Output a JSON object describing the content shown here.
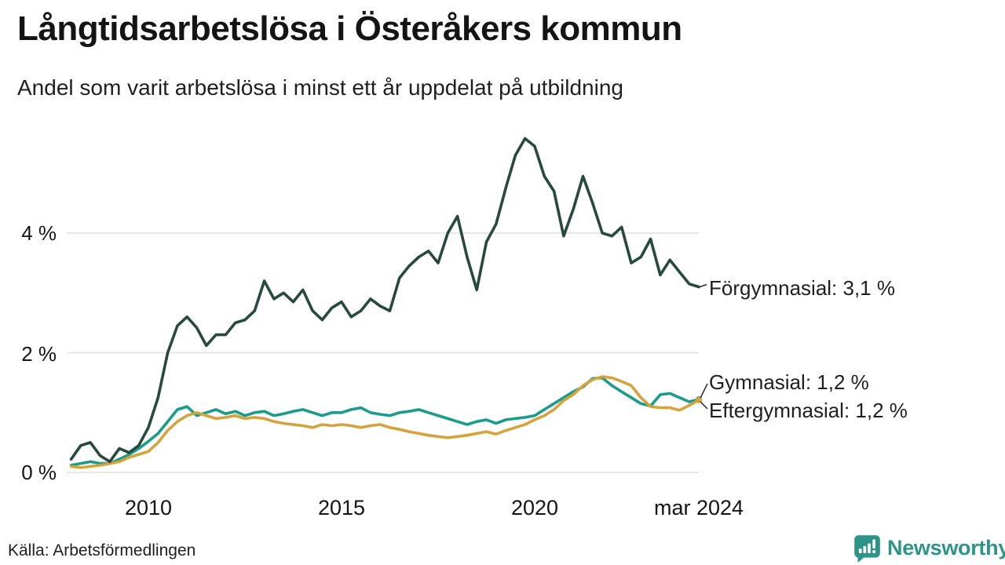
{
  "header": {
    "title": "Långtidsarbetslösa i Österåkers kommun",
    "subtitle": "Andel som varit arbetslösa i minst ett år uppdelat på utbildning"
  },
  "footer": {
    "source": "Källa: Arbetsförmedlingen",
    "brand": "Newsworthy"
  },
  "colors": {
    "forgymnasial": "#27493f",
    "gymnasial": "#1b9c8b",
    "eftergymnasial": "#d4a33d",
    "grid": "#e8e8e8",
    "connector": "#333333",
    "brand_teal": "#2e9488",
    "text": "#141414"
  },
  "chart_data": {
    "type": "line",
    "title": "Långtidsarbetslösa i Österåkers kommun",
    "subtitle": "Andel som varit arbetslösa i minst ett år uppdelat på utbildning",
    "unit": "%",
    "x_start": 2008.0,
    "x_step": 0.25,
    "x_end_label": "mar 2024",
    "grid": true,
    "legend_position": "right-end-annotations",
    "x_axis": {
      "ticks": [
        {
          "label": "2010",
          "year": 2010
        },
        {
          "label": "2015",
          "year": 2015
        },
        {
          "label": "2020",
          "year": 2020
        },
        {
          "label": "mar 2024",
          "year": 2024.17
        }
      ],
      "range": [
        2008.0,
        2024.25
      ]
    },
    "y_axis": {
      "ticks": [
        {
          "label": "0 %",
          "value": 0
        },
        {
          "label": "2 %",
          "value": 2
        },
        {
          "label": "4 %",
          "value": 4
        }
      ],
      "range": [
        0,
        5.8
      ]
    },
    "series": [
      {
        "id": "forgymnasial",
        "name": "Förgymnasial",
        "end_label": "Förgymnasial: 3,1 %",
        "end_value": "3,1 %",
        "color": "#27493f",
        "end_dot": false,
        "values": [
          0.22,
          0.45,
          0.5,
          0.28,
          0.18,
          0.4,
          0.33,
          0.45,
          0.75,
          1.25,
          2.0,
          2.45,
          2.6,
          2.42,
          2.12,
          2.3,
          2.3,
          2.5,
          2.55,
          2.7,
          3.2,
          2.9,
          3.0,
          2.85,
          3.05,
          2.7,
          2.55,
          2.75,
          2.85,
          2.6,
          2.7,
          2.9,
          2.78,
          2.7,
          3.25,
          3.45,
          3.6,
          3.7,
          3.5,
          4.0,
          4.28,
          3.6,
          3.05,
          3.85,
          4.15,
          4.75,
          5.3,
          5.58,
          5.45,
          4.95,
          4.7,
          3.95,
          4.4,
          4.95,
          4.5,
          4.0,
          3.95,
          4.1,
          3.5,
          3.6,
          3.9,
          3.3,
          3.55,
          3.35,
          3.15,
          3.1
        ]
      },
      {
        "id": "gymnasial",
        "name": "Gymnasial",
        "end_label": "Gymnasial: 1,2 %",
        "end_value": "1,2 %",
        "color": "#1b9c8b",
        "end_dot": true,
        "values": [
          0.12,
          0.15,
          0.18,
          0.15,
          0.15,
          0.22,
          0.3,
          0.4,
          0.52,
          0.65,
          0.85,
          1.05,
          1.1,
          0.95,
          1.0,
          1.05,
          0.98,
          1.02,
          0.95,
          1.0,
          1.02,
          0.95,
          0.98,
          1.02,
          1.05,
          1.0,
          0.95,
          1.0,
          1.0,
          1.05,
          1.08,
          1.0,
          0.97,
          0.95,
          1.0,
          1.02,
          1.05,
          1.0,
          0.95,
          0.9,
          0.85,
          0.8,
          0.85,
          0.88,
          0.82,
          0.88,
          0.9,
          0.92,
          0.95,
          1.05,
          1.15,
          1.25,
          1.35,
          1.43,
          1.57,
          1.58,
          1.45,
          1.35,
          1.25,
          1.15,
          1.11,
          1.3,
          1.32,
          1.25,
          1.18,
          1.22
        ]
      },
      {
        "id": "eftergymnasial",
        "name": "Eftergymnasial",
        "end_label": "Eftergymnasial: 1,2 %",
        "end_value": "1,2 %",
        "color": "#d4a33d",
        "end_dot": true,
        "values": [
          0.1,
          0.08,
          0.1,
          0.12,
          0.15,
          0.18,
          0.25,
          0.3,
          0.35,
          0.5,
          0.7,
          0.85,
          0.95,
          1.0,
          0.95,
          0.9,
          0.92,
          0.95,
          0.9,
          0.92,
          0.9,
          0.85,
          0.82,
          0.8,
          0.78,
          0.75,
          0.8,
          0.78,
          0.8,
          0.78,
          0.75,
          0.78,
          0.8,
          0.75,
          0.72,
          0.68,
          0.65,
          0.62,
          0.6,
          0.58,
          0.6,
          0.62,
          0.65,
          0.68,
          0.64,
          0.7,
          0.75,
          0.8,
          0.88,
          0.95,
          1.05,
          1.2,
          1.3,
          1.45,
          1.55,
          1.6,
          1.58,
          1.52,
          1.45,
          1.25,
          1.1,
          1.08,
          1.08,
          1.04,
          1.12,
          1.21
        ]
      }
    ]
  }
}
